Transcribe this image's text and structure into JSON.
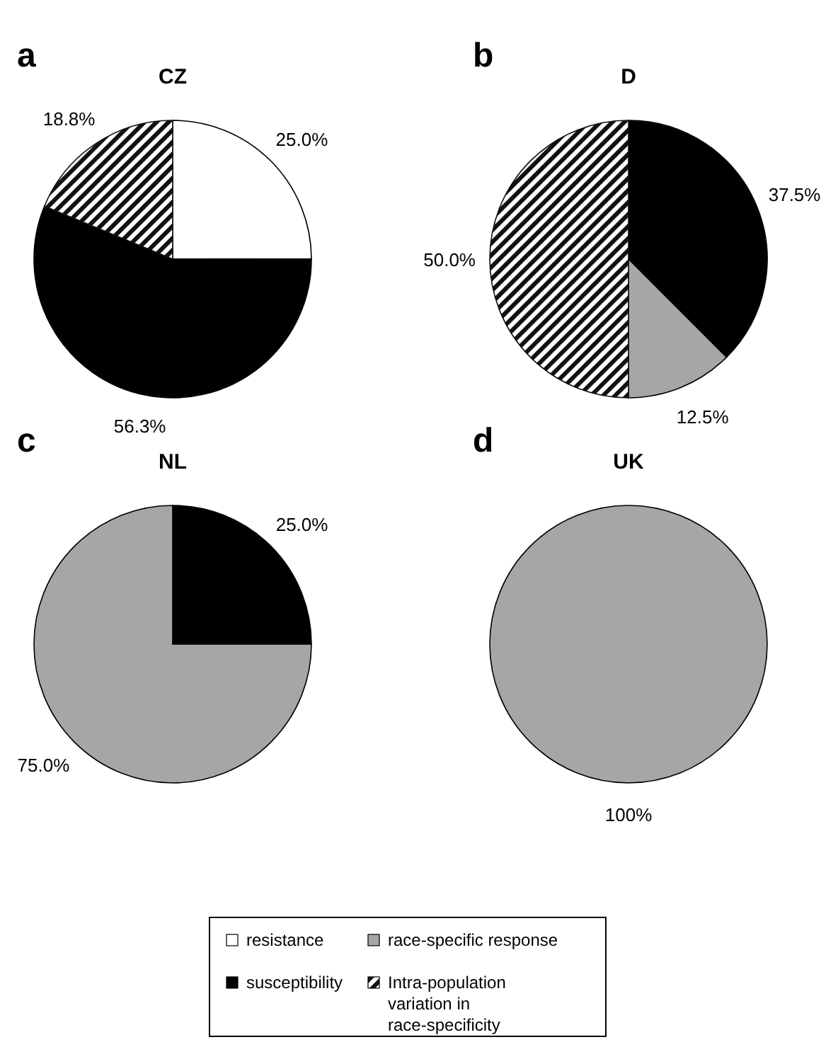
{
  "chart_data": [
    {
      "type": "pie",
      "title": "CZ",
      "annotations": [
        "a"
      ],
      "categories": [
        null,
        null,
        null
      ],
      "values": [
        25.0,
        56.3,
        18.8
      ],
      "value_labels": [
        "25.0%",
        "56.3%",
        "18.8%"
      ],
      "colors": [
        "#ffffff",
        "#000000",
        "#111111"
      ]
    },
    {
      "type": "pie",
      "title": "D",
      "annotations": [
        "b"
      ],
      "categories": [
        null,
        null,
        null
      ],
      "values": [
        37.5,
        12.5,
        50.0
      ],
      "value_labels": [
        "37.5%",
        "12.5%",
        "50.0%"
      ],
      "colors": [
        "#000000",
        "#a6a6a6",
        "#111111"
      ]
    },
    {
      "type": "pie",
      "title": "NL",
      "annotations": [
        "c"
      ],
      "categories": [
        null,
        null
      ],
      "values": [
        25.0,
        75.0
      ],
      "value_labels": [
        "25.0%",
        "75.0%"
      ],
      "colors": [
        "#000000",
        "#a6a6a6"
      ]
    },
    {
      "type": "pie",
      "title": "UK",
      "annotations": [
        "d"
      ],
      "categories": [
        "resistance",
        "susceptibility",
        "race-specific response",
        "Intra-population variation in race-specificity"
      ],
      "values": [
        0,
        0,
        100,
        0
      ],
      "value_labels": [
        null,
        null,
        "100%",
        null
      ],
      "colors": [
        "#ffffff",
        "#000000",
        "#a6a6a6",
        "#111111"
      ],
      "legend": "bottom"
    }
  ]
}
